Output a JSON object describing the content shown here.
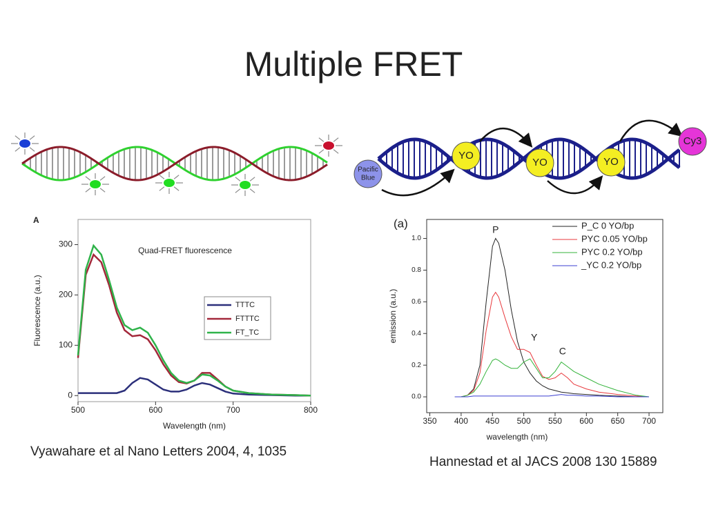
{
  "title": "Multiple FRET",
  "diagram_right": {
    "donor": [
      "Pacific",
      "Blue"
    ],
    "intercalators": [
      "YO",
      "YO",
      "YO"
    ],
    "acceptor": "Cy3"
  },
  "captions": [
    "Vyawahare et al Nano Letters 2004, 4, 1035",
    "Hannestad et al JACS 2008 130 15889"
  ],
  "chart_data": [
    {
      "type": "line",
      "panel": "A",
      "title": "Quad-FRET fluorescence",
      "xlabel": "Wavelength (nm)",
      "ylabel": "Fluorescence (a.u.)",
      "x": [
        500,
        510,
        520,
        530,
        540,
        550,
        560,
        570,
        580,
        590,
        600,
        610,
        620,
        630,
        640,
        650,
        660,
        670,
        680,
        690,
        700,
        720,
        750,
        780,
        800
      ],
      "series": [
        {
          "name": "TTTC",
          "color": "#2b2f7a",
          "values": [
            5,
            5,
            5,
            5,
            5,
            5,
            10,
            25,
            35,
            32,
            22,
            12,
            8,
            8,
            12,
            20,
            25,
            22,
            15,
            8,
            4,
            2,
            1,
            0,
            0
          ]
        },
        {
          "name": "FTTTC",
          "color": "#a3283a",
          "values": [
            75,
            240,
            280,
            265,
            220,
            165,
            130,
            118,
            120,
            112,
            90,
            62,
            40,
            27,
            24,
            30,
            45,
            45,
            32,
            18,
            10,
            5,
            2,
            1,
            0
          ]
        },
        {
          "name": "FT_TC",
          "color": "#2fb34a",
          "values": [
            80,
            250,
            298,
            280,
            230,
            175,
            140,
            130,
            135,
            125,
            100,
            70,
            45,
            30,
            25,
            30,
            42,
            40,
            30,
            18,
            10,
            5,
            2,
            1,
            0
          ]
        }
      ],
      "xlim": [
        500,
        800
      ],
      "ylim": [
        -12,
        350
      ],
      "xticks": [
        500,
        600,
        700,
        800
      ],
      "yticks": [
        0,
        100,
        200,
        300
      ],
      "legend": "center-right"
    },
    {
      "type": "line",
      "panel": "(a)",
      "xlabel": "wavelength (nm)",
      "ylabel": "emission (a.u.)",
      "annotations": [
        "P",
        "Y",
        "C"
      ],
      "x": [
        390,
        400,
        410,
        420,
        430,
        440,
        450,
        455,
        460,
        470,
        480,
        490,
        500,
        510,
        520,
        530,
        540,
        550,
        560,
        570,
        580,
        600,
        620,
        650,
        680,
        700
      ],
      "series": [
        {
          "name": "P_C 0 YO/bp",
          "color": "#222222",
          "values": [
            0,
            0,
            0.01,
            0.05,
            0.2,
            0.6,
            0.95,
            1.0,
            0.97,
            0.8,
            0.55,
            0.35,
            0.22,
            0.15,
            0.1,
            0.07,
            0.05,
            0.04,
            0.03,
            0.025,
            0.02,
            0.015,
            0.01,
            0.005,
            0,
            0
          ]
        },
        {
          "name": "PYC 0.05 YO/bp",
          "color": "#e8393d",
          "values": [
            0,
            0,
            0.01,
            0.04,
            0.15,
            0.42,
            0.63,
            0.66,
            0.63,
            0.5,
            0.38,
            0.3,
            0.3,
            0.28,
            0.2,
            0.13,
            0.11,
            0.12,
            0.15,
            0.12,
            0.08,
            0.05,
            0.03,
            0.015,
            0.005,
            0
          ]
        },
        {
          "name": "PYC 0.2 YO/bp",
          "color": "#33b33a",
          "values": [
            0,
            0,
            0.01,
            0.03,
            0.08,
            0.16,
            0.23,
            0.24,
            0.23,
            0.2,
            0.18,
            0.18,
            0.22,
            0.24,
            0.18,
            0.12,
            0.12,
            0.16,
            0.22,
            0.19,
            0.16,
            0.12,
            0.08,
            0.04,
            0.01,
            0
          ]
        },
        {
          "name": "_YC 0.2 YO/bp",
          "color": "#3b3fd0",
          "values": [
            0,
            0,
            0,
            0.005,
            0.005,
            0.005,
            0.005,
            0.005,
            0.005,
            0.005,
            0.005,
            0.005,
            0.005,
            0.005,
            0.005,
            0.005,
            0.005,
            0.01,
            0.015,
            0.01,
            0.01,
            0.005,
            0.005,
            0,
            0,
            0
          ]
        }
      ],
      "xlim": [
        345,
        722
      ],
      "ylim": [
        -0.1,
        1.12
      ],
      "xticks": [
        350,
        400,
        450,
        500,
        550,
        600,
        650,
        700
      ],
      "yticks": [
        {
          "value": 0,
          "label": "0.0"
        },
        0.2,
        0.4,
        0.6,
        0.8,
        {
          "value": 1,
          "label": "1.0"
        }
      ],
      "legend": "upper-right"
    }
  ]
}
